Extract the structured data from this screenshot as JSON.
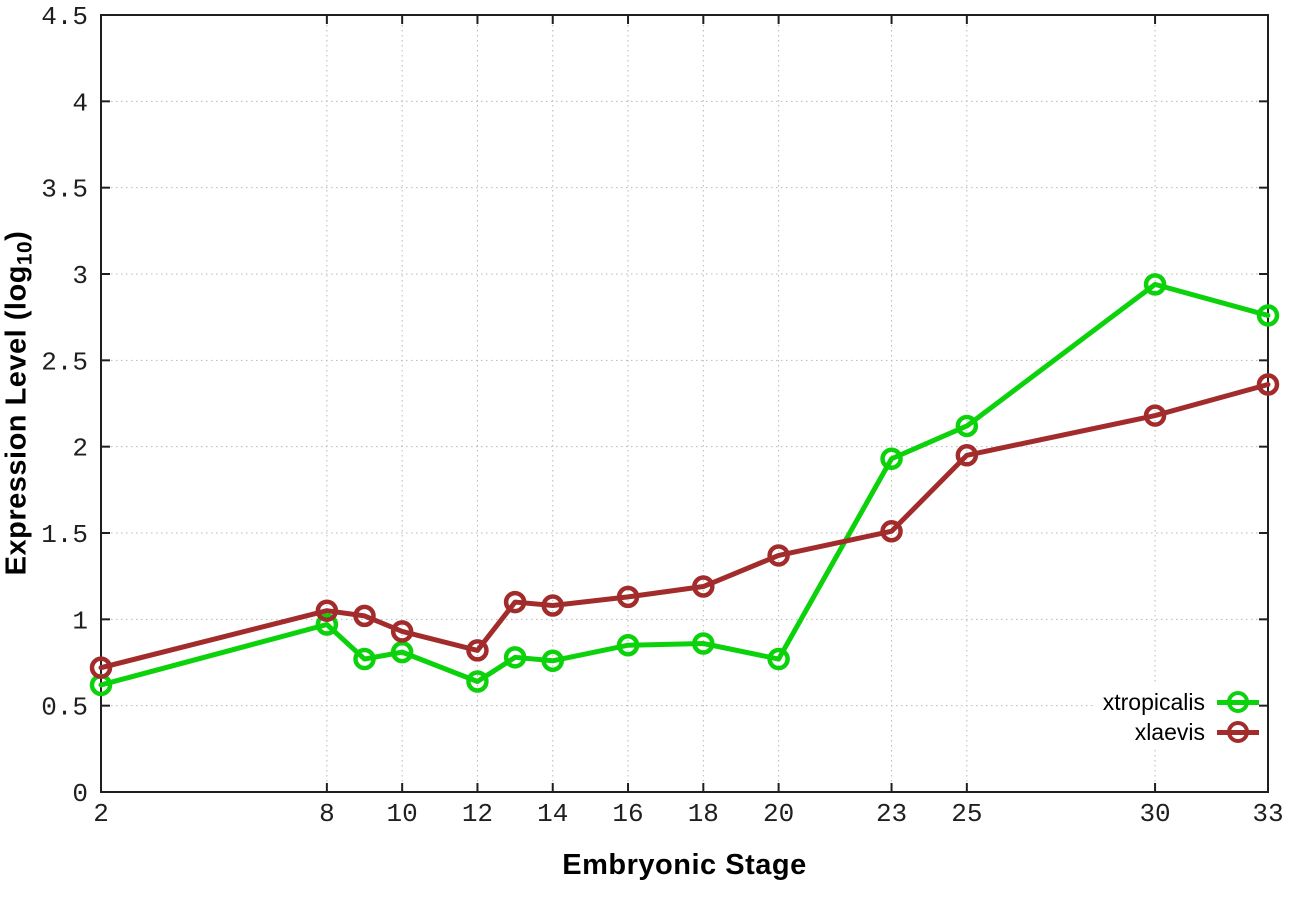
{
  "chart_data": {
    "type": "line",
    "title": "",
    "xlabel": "Embryonic Stage",
    "ylabel": "Expression Level (log10)",
    "ylabel_parts": {
      "pre": "Expression Level (log",
      "sub": "10",
      "post": ")"
    },
    "xlim": [
      2,
      33
    ],
    "ylim": [
      0,
      4.5
    ],
    "x_ticks": [
      2,
      8,
      10,
      12,
      14,
      16,
      18,
      20,
      23,
      25,
      30,
      33
    ],
    "y_ticks": [
      0,
      0.5,
      1,
      1.5,
      2,
      2.5,
      3,
      3.5,
      4,
      4.5
    ],
    "grid": "dotted",
    "marker": "open-circle",
    "legend_position": "inside-right",
    "x": [
      2,
      8,
      9,
      10,
      12,
      13,
      14,
      16,
      18,
      20,
      23,
      25,
      30,
      33
    ],
    "series": [
      {
        "name": "xtropicalis",
        "color": "#0bd20b",
        "values": [
          0.62,
          0.97,
          0.77,
          0.81,
          0.64,
          0.78,
          0.76,
          0.85,
          0.86,
          0.77,
          1.93,
          2.12,
          2.94,
          2.76
        ]
      },
      {
        "name": "xlaevis",
        "color": "#a22c2c",
        "values": [
          0.72,
          1.05,
          1.02,
          0.93,
          0.82,
          1.1,
          1.08,
          1.13,
          1.19,
          1.37,
          1.51,
          1.95,
          2.18,
          2.36
        ]
      }
    ],
    "colors": {
      "axis": "#1f1f1f",
      "grid": "#b8b8b8",
      "text": "#000000"
    }
  }
}
